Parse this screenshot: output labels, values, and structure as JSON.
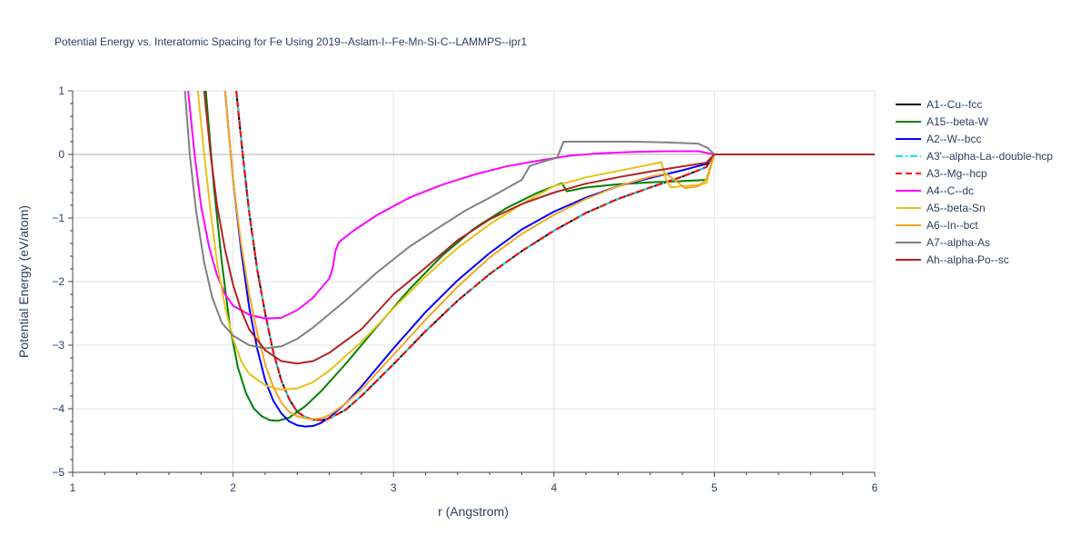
{
  "chart_data": {
    "type": "line",
    "title": "Potential Energy vs. Interatomic Spacing for Fe Using 2019--Aslam-I--Fe-Mn-Si-C--LAMMPS--ipr1",
    "xlabel": "r (Angstrom)",
    "ylabel": "Potential Energy (eV/atom)",
    "xlim": [
      1,
      6
    ],
    "ylim": [
      -5,
      1
    ],
    "xticks": [
      1,
      2,
      3,
      4,
      5,
      6
    ],
    "xtick_labels": [
      "1",
      "2",
      "3",
      "4",
      "5",
      "6"
    ],
    "yticks": [
      -5,
      -4,
      -3,
      -2,
      -1,
      0,
      1
    ],
    "ytick_labels": [
      "−5",
      "−4",
      "−3",
      "−2",
      "−1",
      "0",
      "1"
    ],
    "grid": true,
    "legend_position": "right",
    "series": [
      {
        "name": "A1--Cu--fcc",
        "color": "#000000",
        "dash": "solid",
        "points": [
          [
            2.02,
            1.0
          ],
          [
            2.06,
            0.0
          ],
          [
            2.1,
            -0.9
          ],
          [
            2.15,
            -1.8
          ],
          [
            2.2,
            -2.5
          ],
          [
            2.25,
            -3.1
          ],
          [
            2.3,
            -3.55
          ],
          [
            2.35,
            -3.85
          ],
          [
            2.4,
            -4.05
          ],
          [
            2.45,
            -4.13
          ],
          [
            2.5,
            -4.17
          ],
          [
            2.55,
            -4.18
          ],
          [
            2.6,
            -4.15
          ],
          [
            2.7,
            -4.02
          ],
          [
            2.8,
            -3.8
          ],
          [
            2.9,
            -3.55
          ],
          [
            3.0,
            -3.3
          ],
          [
            3.2,
            -2.78
          ],
          [
            3.4,
            -2.3
          ],
          [
            3.6,
            -1.88
          ],
          [
            3.8,
            -1.52
          ],
          [
            4.0,
            -1.2
          ],
          [
            4.2,
            -0.92
          ],
          [
            4.4,
            -0.7
          ],
          [
            4.6,
            -0.52
          ],
          [
            4.8,
            -0.35
          ],
          [
            4.95,
            -0.2
          ],
          [
            5.0,
            0.0
          ],
          [
            6.0,
            0.0
          ]
        ]
      },
      {
        "name": "A15--beta-W",
        "color": "#008000",
        "dash": "solid",
        "points": [
          [
            1.83,
            1.0
          ],
          [
            1.88,
            -0.5
          ],
          [
            1.93,
            -1.7
          ],
          [
            1.98,
            -2.7
          ],
          [
            2.03,
            -3.35
          ],
          [
            2.08,
            -3.75
          ],
          [
            2.13,
            -4.0
          ],
          [
            2.18,
            -4.12
          ],
          [
            2.23,
            -4.18
          ],
          [
            2.28,
            -4.19
          ],
          [
            2.35,
            -4.14
          ],
          [
            2.45,
            -3.96
          ],
          [
            2.55,
            -3.72
          ],
          [
            2.7,
            -3.3
          ],
          [
            2.9,
            -2.7
          ],
          [
            3.1,
            -2.12
          ],
          [
            3.3,
            -1.6
          ],
          [
            3.5,
            -1.17
          ],
          [
            3.7,
            -0.85
          ],
          [
            3.9,
            -0.6
          ],
          [
            4.0,
            -0.5
          ],
          [
            4.05,
            -0.45
          ],
          [
            4.08,
            -0.58
          ],
          [
            4.2,
            -0.52
          ],
          [
            4.4,
            -0.47
          ],
          [
            4.6,
            -0.44
          ],
          [
            4.8,
            -0.42
          ],
          [
            4.95,
            -0.4
          ],
          [
            5.0,
            0.0
          ],
          [
            6.0,
            0.0
          ]
        ]
      },
      {
        "name": "A2--W--bcc",
        "color": "#0000ff",
        "dash": "solid",
        "points": [
          [
            1.95,
            1.0
          ],
          [
            2.0,
            -0.4
          ],
          [
            2.05,
            -1.5
          ],
          [
            2.1,
            -2.4
          ],
          [
            2.15,
            -3.05
          ],
          [
            2.2,
            -3.55
          ],
          [
            2.25,
            -3.87
          ],
          [
            2.3,
            -4.07
          ],
          [
            2.35,
            -4.2
          ],
          [
            2.4,
            -4.26
          ],
          [
            2.45,
            -4.28
          ],
          [
            2.5,
            -4.27
          ],
          [
            2.55,
            -4.22
          ],
          [
            2.6,
            -4.14
          ],
          [
            2.7,
            -3.92
          ],
          [
            2.8,
            -3.65
          ],
          [
            3.0,
            -3.05
          ],
          [
            3.2,
            -2.48
          ],
          [
            3.4,
            -1.98
          ],
          [
            3.6,
            -1.55
          ],
          [
            3.8,
            -1.18
          ],
          [
            4.0,
            -0.9
          ],
          [
            4.2,
            -0.68
          ],
          [
            4.4,
            -0.5
          ],
          [
            4.6,
            -0.37
          ],
          [
            4.8,
            -0.25
          ],
          [
            4.95,
            -0.15
          ],
          [
            5.0,
            0.0
          ],
          [
            6.0,
            0.0
          ]
        ]
      },
      {
        "name": "A3'--alpha-La--double-hcp",
        "color": "#00e5ee",
        "dash": "dashdot",
        "points": [
          [
            2.02,
            1.0
          ],
          [
            2.06,
            0.0
          ],
          [
            2.1,
            -0.9
          ],
          [
            2.15,
            -1.8
          ],
          [
            2.2,
            -2.5
          ],
          [
            2.25,
            -3.1
          ],
          [
            2.3,
            -3.55
          ],
          [
            2.35,
            -3.85
          ],
          [
            2.4,
            -4.05
          ],
          [
            2.45,
            -4.13
          ],
          [
            2.5,
            -4.17
          ],
          [
            2.55,
            -4.18
          ],
          [
            2.6,
            -4.15
          ],
          [
            2.7,
            -4.02
          ],
          [
            2.8,
            -3.8
          ],
          [
            2.9,
            -3.55
          ],
          [
            3.0,
            -3.3
          ],
          [
            3.2,
            -2.78
          ],
          [
            3.4,
            -2.3
          ],
          [
            3.6,
            -1.88
          ],
          [
            3.8,
            -1.52
          ],
          [
            4.0,
            -1.2
          ],
          [
            4.2,
            -0.92
          ],
          [
            4.4,
            -0.7
          ],
          [
            4.6,
            -0.52
          ],
          [
            4.8,
            -0.35
          ],
          [
            4.95,
            -0.2
          ],
          [
            5.0,
            0.0
          ],
          [
            6.0,
            0.0
          ]
        ]
      },
      {
        "name": "A3--Mg--hcp",
        "color": "#ff0000",
        "dash": "dash",
        "points": [
          [
            2.02,
            1.0
          ],
          [
            2.06,
            0.0
          ],
          [
            2.1,
            -0.9
          ],
          [
            2.15,
            -1.8
          ],
          [
            2.2,
            -2.5
          ],
          [
            2.25,
            -3.1
          ],
          [
            2.3,
            -3.55
          ],
          [
            2.35,
            -3.85
          ],
          [
            2.4,
            -4.05
          ],
          [
            2.45,
            -4.13
          ],
          [
            2.5,
            -4.17
          ],
          [
            2.55,
            -4.18
          ],
          [
            2.6,
            -4.15
          ],
          [
            2.7,
            -4.02
          ],
          [
            2.8,
            -3.8
          ],
          [
            2.9,
            -3.55
          ],
          [
            3.0,
            -3.3
          ],
          [
            3.2,
            -2.78
          ],
          [
            3.4,
            -2.3
          ],
          [
            3.6,
            -1.88
          ],
          [
            3.8,
            -1.52
          ],
          [
            4.0,
            -1.2
          ],
          [
            4.2,
            -0.92
          ],
          [
            4.4,
            -0.7
          ],
          [
            4.6,
            -0.52
          ],
          [
            4.8,
            -0.35
          ],
          [
            4.95,
            -0.2
          ],
          [
            5.0,
            0.0
          ],
          [
            6.0,
            0.0
          ]
        ]
      },
      {
        "name": "A4--C--dc",
        "color": "#ff00ff",
        "dash": "solid",
        "points": [
          [
            1.72,
            1.0
          ],
          [
            1.76,
            0.0
          ],
          [
            1.8,
            -0.8
          ],
          [
            1.85,
            -1.45
          ],
          [
            1.9,
            -1.9
          ],
          [
            1.95,
            -2.2
          ],
          [
            2.0,
            -2.38
          ],
          [
            2.1,
            -2.52
          ],
          [
            2.2,
            -2.58
          ],
          [
            2.3,
            -2.57
          ],
          [
            2.4,
            -2.45
          ],
          [
            2.5,
            -2.25
          ],
          [
            2.55,
            -2.1
          ],
          [
            2.6,
            -1.95
          ],
          [
            2.62,
            -1.8
          ],
          [
            2.64,
            -1.5
          ],
          [
            2.66,
            -1.38
          ],
          [
            2.75,
            -1.2
          ],
          [
            2.9,
            -0.95
          ],
          [
            3.1,
            -0.68
          ],
          [
            3.3,
            -0.48
          ],
          [
            3.5,
            -0.32
          ],
          [
            3.7,
            -0.19
          ],
          [
            3.9,
            -0.1
          ],
          [
            4.1,
            -0.02
          ],
          [
            4.3,
            0.02
          ],
          [
            4.5,
            0.04
          ],
          [
            4.7,
            0.05
          ],
          [
            4.9,
            0.05
          ],
          [
            5.0,
            0.0
          ],
          [
            6.0,
            0.0
          ]
        ]
      },
      {
        "name": "A5--beta-Sn",
        "color": "#e6c21a",
        "dash": "solid",
        "points": [
          [
            1.78,
            1.0
          ],
          [
            1.82,
            0.0
          ],
          [
            1.86,
            -0.9
          ],
          [
            1.9,
            -1.7
          ],
          [
            1.95,
            -2.4
          ],
          [
            2.0,
            -2.9
          ],
          [
            2.05,
            -3.25
          ],
          [
            2.1,
            -3.45
          ],
          [
            2.2,
            -3.63
          ],
          [
            2.3,
            -3.7
          ],
          [
            2.4,
            -3.68
          ],
          [
            2.5,
            -3.58
          ],
          [
            2.6,
            -3.4
          ],
          [
            2.8,
            -2.95
          ],
          [
            3.0,
            -2.42
          ],
          [
            3.2,
            -1.92
          ],
          [
            3.4,
            -1.47
          ],
          [
            3.6,
            -1.1
          ],
          [
            3.8,
            -0.78
          ],
          [
            4.0,
            -0.5
          ],
          [
            4.2,
            -0.36
          ],
          [
            4.4,
            -0.26
          ],
          [
            4.6,
            -0.16
          ],
          [
            4.67,
            -0.12
          ],
          [
            4.7,
            -0.4
          ],
          [
            4.73,
            -0.52
          ],
          [
            4.8,
            -0.5
          ],
          [
            4.9,
            -0.48
          ],
          [
            4.95,
            -0.45
          ],
          [
            5.0,
            0.0
          ],
          [
            6.0,
            0.0
          ]
        ]
      },
      {
        "name": "A6--In--bct",
        "color": "#f5a623",
        "dash": "solid",
        "points": [
          [
            1.95,
            1.0
          ],
          [
            2.0,
            -0.4
          ],
          [
            2.05,
            -1.4
          ],
          [
            2.1,
            -2.2
          ],
          [
            2.15,
            -2.8
          ],
          [
            2.2,
            -3.3
          ],
          [
            2.25,
            -3.65
          ],
          [
            2.3,
            -3.9
          ],
          [
            2.35,
            -4.05
          ],
          [
            2.4,
            -4.12
          ],
          [
            2.45,
            -4.15
          ],
          [
            2.5,
            -4.16
          ],
          [
            2.55,
            -4.15
          ],
          [
            2.6,
            -4.1
          ],
          [
            2.7,
            -3.92
          ],
          [
            2.8,
            -3.7
          ],
          [
            3.0,
            -3.15
          ],
          [
            3.2,
            -2.6
          ],
          [
            3.4,
            -2.08
          ],
          [
            3.6,
            -1.62
          ],
          [
            3.8,
            -1.25
          ],
          [
            4.0,
            -0.95
          ],
          [
            4.2,
            -0.7
          ],
          [
            4.4,
            -0.5
          ],
          [
            4.6,
            -0.35
          ],
          [
            4.7,
            -0.3
          ],
          [
            4.75,
            -0.4
          ],
          [
            4.82,
            -0.53
          ],
          [
            4.9,
            -0.5
          ],
          [
            4.95,
            -0.4
          ],
          [
            5.0,
            0.0
          ],
          [
            6.0,
            0.0
          ]
        ]
      },
      {
        "name": "A7--alpha-As",
        "color": "#808080",
        "dash": "solid",
        "points": [
          [
            1.7,
            1.0
          ],
          [
            1.73,
            0.0
          ],
          [
            1.77,
            -0.9
          ],
          [
            1.82,
            -1.7
          ],
          [
            1.87,
            -2.25
          ],
          [
            1.93,
            -2.65
          ],
          [
            2.0,
            -2.85
          ],
          [
            2.1,
            -3.0
          ],
          [
            2.2,
            -3.05
          ],
          [
            2.3,
            -3.02
          ],
          [
            2.4,
            -2.9
          ],
          [
            2.5,
            -2.72
          ],
          [
            2.7,
            -2.3
          ],
          [
            2.9,
            -1.85
          ],
          [
            3.1,
            -1.45
          ],
          [
            3.3,
            -1.12
          ],
          [
            3.45,
            -0.88
          ],
          [
            3.6,
            -0.68
          ],
          [
            3.8,
            -0.4
          ],
          [
            3.85,
            -0.18
          ],
          [
            3.95,
            -0.1
          ],
          [
            4.02,
            -0.05
          ],
          [
            4.06,
            0.2
          ],
          [
            4.2,
            0.2
          ],
          [
            4.5,
            0.2
          ],
          [
            4.7,
            0.19
          ],
          [
            4.9,
            0.17
          ],
          [
            4.96,
            0.1
          ],
          [
            5.0,
            0.0
          ],
          [
            6.0,
            0.0
          ]
        ]
      },
      {
        "name": "Ah--alpha-Po--sc",
        "color": "#b22222",
        "dash": "solid",
        "points": [
          [
            1.82,
            1.0
          ],
          [
            1.86,
            0.0
          ],
          [
            1.9,
            -0.8
          ],
          [
            1.95,
            -1.5
          ],
          [
            2.0,
            -2.05
          ],
          [
            2.05,
            -2.45
          ],
          [
            2.1,
            -2.75
          ],
          [
            2.2,
            -3.08
          ],
          [
            2.3,
            -3.25
          ],
          [
            2.4,
            -3.29
          ],
          [
            2.5,
            -3.25
          ],
          [
            2.6,
            -3.12
          ],
          [
            2.8,
            -2.75
          ],
          [
            3.0,
            -2.2
          ],
          [
            3.2,
            -1.78
          ],
          [
            3.4,
            -1.35
          ],
          [
            3.6,
            -1.02
          ],
          [
            3.8,
            -0.78
          ],
          [
            4.0,
            -0.6
          ],
          [
            4.2,
            -0.46
          ],
          [
            4.4,
            -0.36
          ],
          [
            4.6,
            -0.27
          ],
          [
            4.8,
            -0.19
          ],
          [
            4.95,
            -0.13
          ],
          [
            5.0,
            0.0
          ],
          [
            6.0,
            0.0
          ]
        ]
      }
    ]
  }
}
